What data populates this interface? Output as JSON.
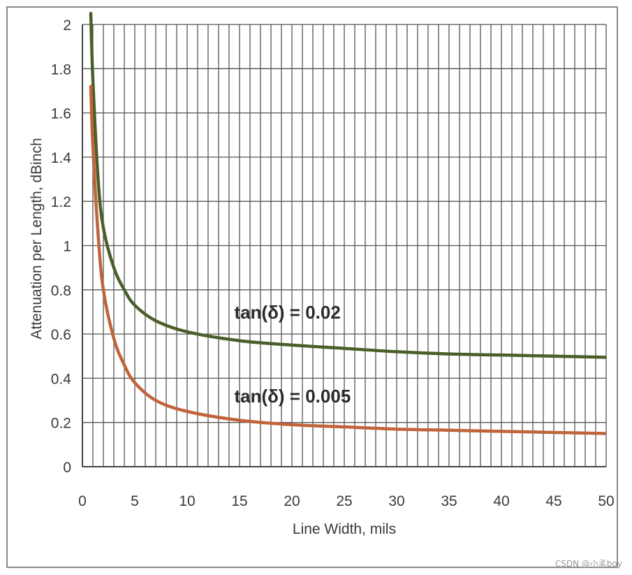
{
  "chart_data": {
    "type": "line",
    "title": "",
    "xlabel": "Line Width, mils",
    "ylabel": "Attenuation per Length, dBinch",
    "xlim": [
      0,
      50
    ],
    "ylim": [
      0,
      2
    ],
    "x_ticks": [
      0,
      5,
      10,
      15,
      20,
      25,
      30,
      35,
      40,
      45,
      50
    ],
    "y_ticks": [
      0,
      0.2,
      0.4,
      0.6,
      0.8,
      1,
      1.2,
      1.4,
      1.6,
      1.8,
      2
    ],
    "y_tick_labels": [
      "0",
      "0.2",
      "0.4",
      "0.6",
      "0.8",
      "1",
      "1.2",
      "1.4",
      "1.6",
      "1.8",
      "2"
    ],
    "grid": true,
    "series": [
      {
        "name": "tan(δ) = 0.02",
        "color": "#4a5e2a",
        "x": [
          0.8,
          1,
          1.5,
          2,
          3,
          4,
          5,
          7,
          10,
          15,
          20,
          25,
          30,
          35,
          40,
          45,
          50
        ],
        "y": [
          2.05,
          1.75,
          1.3,
          1.08,
          0.9,
          0.8,
          0.73,
          0.66,
          0.61,
          0.57,
          0.55,
          0.535,
          0.52,
          0.51,
          0.505,
          0.5,
          0.495
        ]
      },
      {
        "name": "tan(δ) = 0.005",
        "color": "#c0643a",
        "x": [
          0.8,
          1,
          1.5,
          2,
          3,
          4,
          5,
          7,
          10,
          15,
          20,
          25,
          30,
          35,
          40,
          45,
          50
        ],
        "y": [
          1.72,
          1.45,
          1.05,
          0.8,
          0.58,
          0.46,
          0.38,
          0.3,
          0.25,
          0.21,
          0.19,
          0.18,
          0.17,
          0.165,
          0.16,
          0.155,
          0.15
        ]
      }
    ],
    "annotations": [
      {
        "text": "tan(δ) = 0.02",
        "x": 14.5,
        "y": 0.67
      },
      {
        "text": "tan(δ) = 0.005",
        "x": 14.5,
        "y": 0.29
      }
    ]
  },
  "watermark": "CSDN @小孟boy"
}
